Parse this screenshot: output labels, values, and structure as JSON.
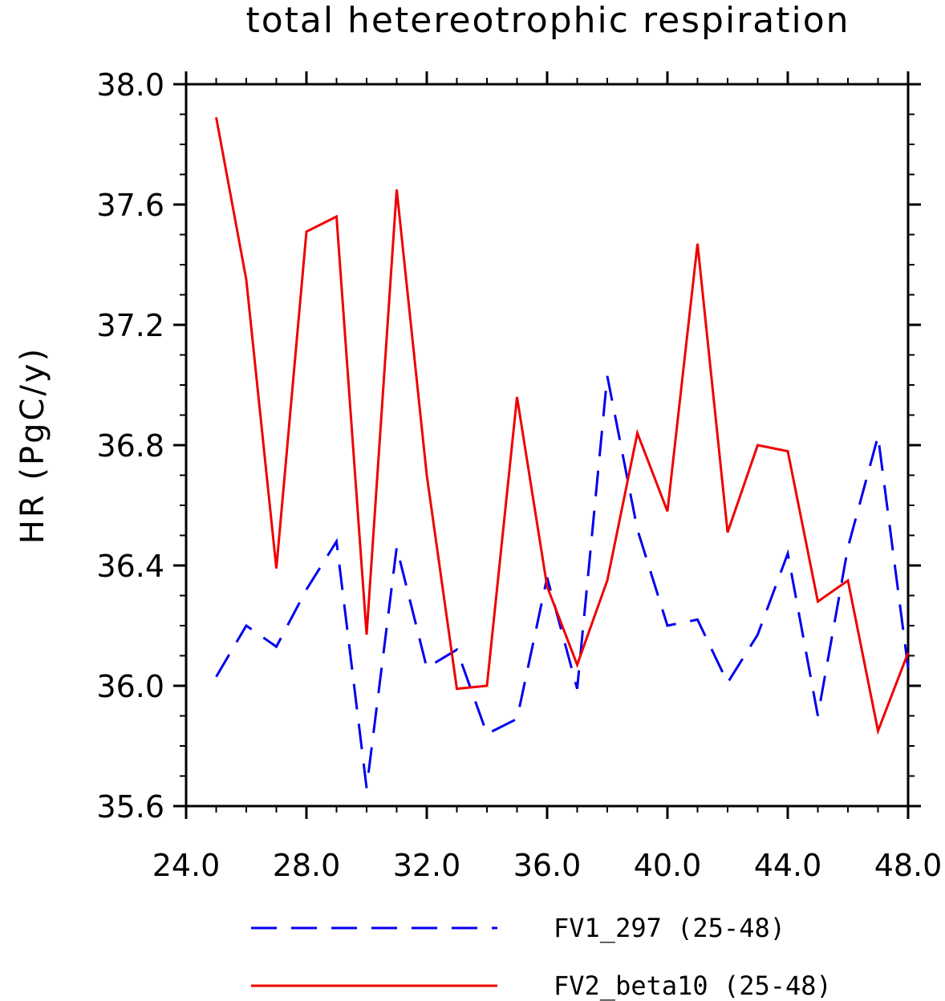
{
  "chart_data": {
    "type": "line",
    "title": "total hetereotrophic respiration",
    "xlabel": "",
    "ylabel": "HR  (PgC/y)",
    "xlim": [
      24.0,
      48.0
    ],
    "ylim": [
      35.6,
      38.0
    ],
    "x_ticks": [
      "24.0",
      "28.0",
      "32.0",
      "36.0",
      "40.0",
      "44.0",
      "48.0"
    ],
    "y_ticks": [
      "35.6",
      "36.0",
      "36.4",
      "36.8",
      "37.2",
      "37.6",
      "38.0"
    ],
    "grid": false,
    "legend_position": "bottom",
    "x": [
      25,
      26,
      27,
      28,
      29,
      30,
      31,
      32,
      33,
      34,
      35,
      36,
      37,
      38,
      39,
      40,
      41,
      42,
      43,
      44,
      45,
      46,
      47,
      48
    ],
    "series": [
      {
        "name": "FV1_297 (25-48)",
        "color": "#0000ee",
        "dash": "dashed",
        "values": [
          36.03,
          36.2,
          36.13,
          36.32,
          36.48,
          35.66,
          36.46,
          36.06,
          36.12,
          35.84,
          35.89,
          36.36,
          35.99,
          37.03,
          36.52,
          36.2,
          36.22,
          36.01,
          36.17,
          36.44,
          35.9,
          36.46,
          36.83,
          36.06
        ]
      },
      {
        "name": "FV2_beta10 (25-48)",
        "color": "#ee0000",
        "dash": "solid",
        "values": [
          37.89,
          37.35,
          36.39,
          37.51,
          37.56,
          36.17,
          37.65,
          36.7,
          35.99,
          36.0,
          36.96,
          36.33,
          36.07,
          36.35,
          36.84,
          36.58,
          37.47,
          36.51,
          36.8,
          36.78,
          36.28,
          36.35,
          35.85,
          36.11
        ]
      }
    ]
  }
}
